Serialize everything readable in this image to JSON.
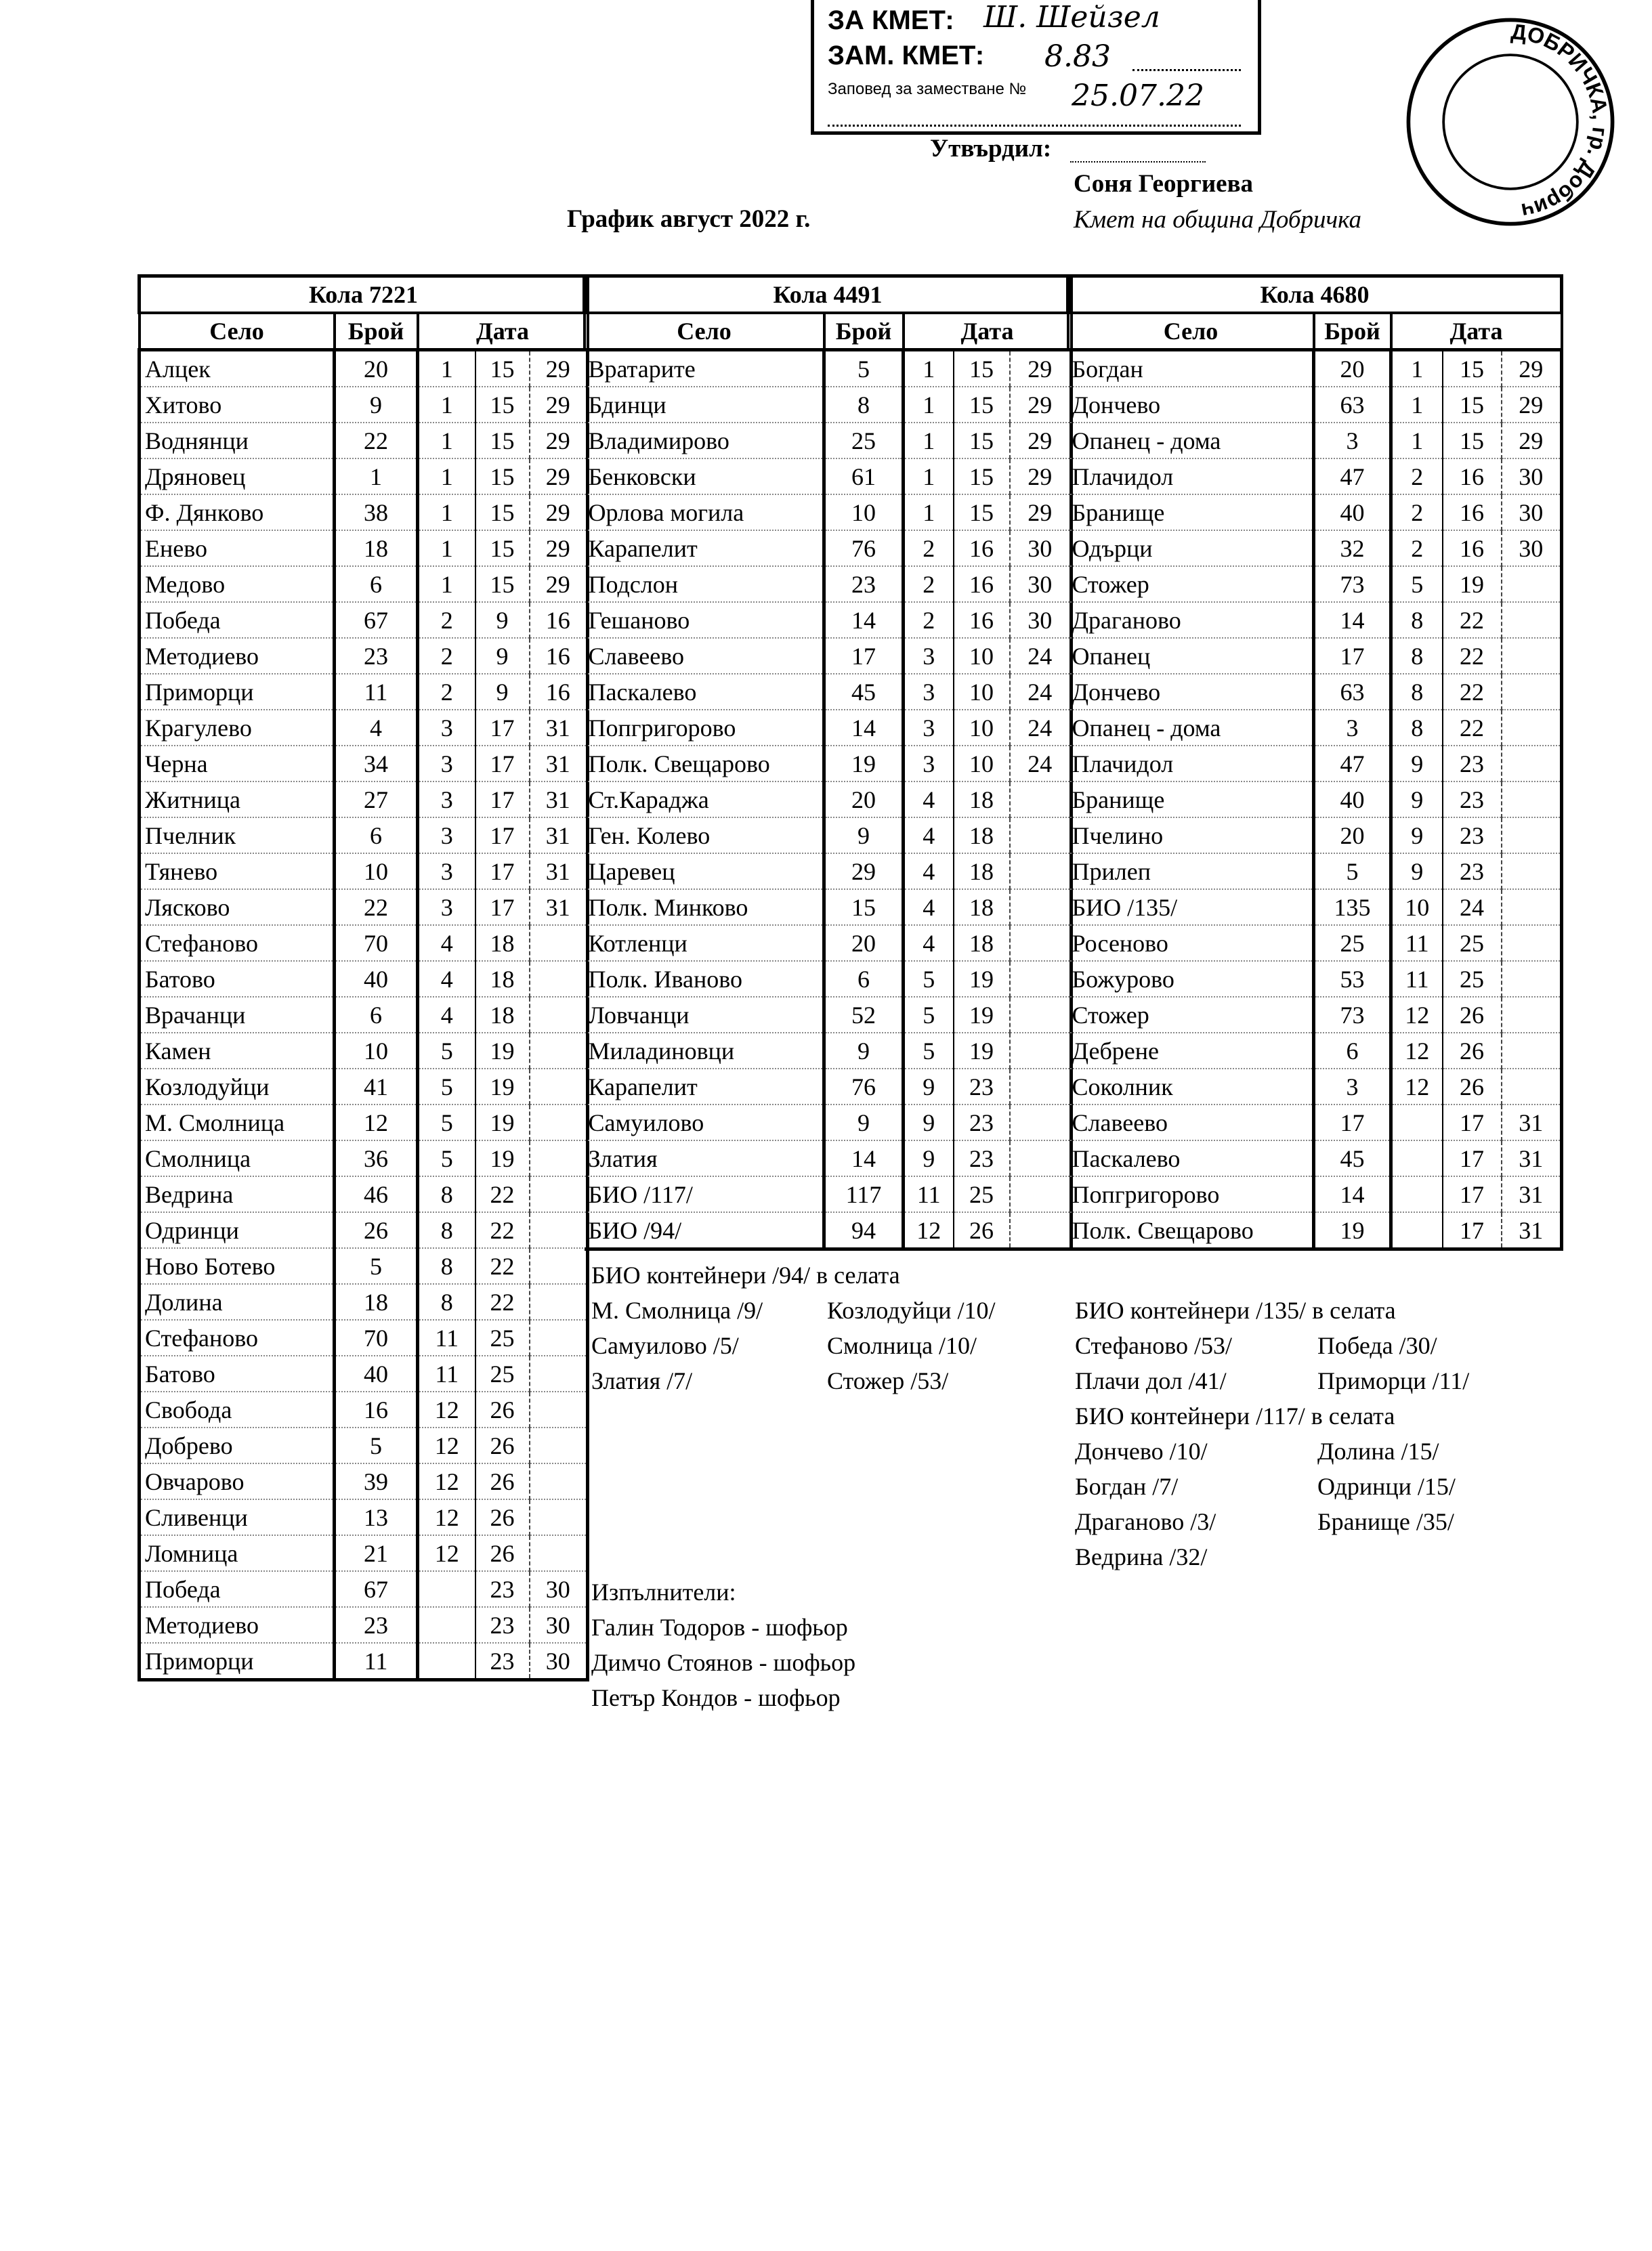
{
  "stamp": {
    "line1": "ЗА КМЕТ:",
    "line2": "ЗАМ. КМЕТ:",
    "line3": "Заповед за заместване №",
    "handwritten_number": "8.83",
    "handwritten_date": "25.07.22",
    "signature": "Ш. Шейзел"
  },
  "seal": {
    "text": "ДОБРИЧКА, гр. Добрич"
  },
  "header": {
    "title": "График август 2022 г.",
    "approved_label": "Утвърдил:",
    "approver_name": "Соня Георгиева",
    "approver_position": "Кмет на община Добричка"
  },
  "tables": [
    {
      "title": "Кола 7221",
      "columns": [
        "Село",
        "Брой",
        "Дата"
      ],
      "rows": [
        [
          "Алцек",
          "20",
          "1",
          "15",
          "29"
        ],
        [
          "Хитово",
          "9",
          "1",
          "15",
          "29"
        ],
        [
          "Воднянци",
          "22",
          "1",
          "15",
          "29"
        ],
        [
          "Дряновец",
          "1",
          "1",
          "15",
          "29"
        ],
        [
          "Ф. Дянково",
          "38",
          "1",
          "15",
          "29"
        ],
        [
          "Енево",
          "18",
          "1",
          "15",
          "29"
        ],
        [
          "Медово",
          "6",
          "1",
          "15",
          "29"
        ],
        [
          "Победа",
          "67",
          "2",
          "9",
          "16"
        ],
        [
          "Методиево",
          "23",
          "2",
          "9",
          "16"
        ],
        [
          "Приморци",
          "11",
          "2",
          "9",
          "16"
        ],
        [
          "Крагулево",
          "4",
          "3",
          "17",
          "31"
        ],
        [
          "Черна",
          "34",
          "3",
          "17",
          "31"
        ],
        [
          "Житница",
          "27",
          "3",
          "17",
          "31"
        ],
        [
          "Пчелник",
          "6",
          "3",
          "17",
          "31"
        ],
        [
          "Тянево",
          "10",
          "3",
          "17",
          "31"
        ],
        [
          "Лясково",
          "22",
          "3",
          "17",
          "31"
        ],
        [
          "Стефаново",
          "70",
          "4",
          "18",
          ""
        ],
        [
          "Батово",
          "40",
          "4",
          "18",
          ""
        ],
        [
          "Врачанци",
          "6",
          "4",
          "18",
          ""
        ],
        [
          "Камен",
          "10",
          "5",
          "19",
          ""
        ],
        [
          "Козлодуйци",
          "41",
          "5",
          "19",
          ""
        ],
        [
          "М. Смолница",
          "12",
          "5",
          "19",
          ""
        ],
        [
          "Смолница",
          "36",
          "5",
          "19",
          ""
        ],
        [
          "Ведрина",
          "46",
          "8",
          "22",
          ""
        ],
        [
          "Одринци",
          "26",
          "8",
          "22",
          ""
        ],
        [
          "Ново Ботево",
          "5",
          "8",
          "22",
          ""
        ],
        [
          "Долина",
          "18",
          "8",
          "22",
          ""
        ],
        [
          "Стефаново",
          "70",
          "11",
          "25",
          ""
        ],
        [
          "Батово",
          "40",
          "11",
          "25",
          ""
        ],
        [
          "Свобода",
          "16",
          "12",
          "26",
          ""
        ],
        [
          "Добрево",
          "5",
          "12",
          "26",
          ""
        ],
        [
          "Овчарово",
          "39",
          "12",
          "26",
          ""
        ],
        [
          "Сливенци",
          "13",
          "12",
          "26",
          ""
        ],
        [
          "Ломница",
          "21",
          "12",
          "26",
          ""
        ],
        [
          "Победа",
          "67",
          "",
          "23",
          "30"
        ],
        [
          "Методиево",
          "23",
          "",
          "23",
          "30"
        ],
        [
          "Приморци",
          "11",
          "",
          "23",
          "30"
        ]
      ]
    },
    {
      "title": "Кола 4491",
      "columns": [
        "Село",
        "Брой",
        "Дата"
      ],
      "rows": [
        [
          "Вратарите",
          "5",
          "1",
          "15",
          "29"
        ],
        [
          "Бдинци",
          "8",
          "1",
          "15",
          "29"
        ],
        [
          "Владимирово",
          "25",
          "1",
          "15",
          "29"
        ],
        [
          "Бенковски",
          "61",
          "1",
          "15",
          "29"
        ],
        [
          "Орлова могила",
          "10",
          "1",
          "15",
          "29"
        ],
        [
          "Карапелит",
          "76",
          "2",
          "16",
          "30"
        ],
        [
          "Подслон",
          "23",
          "2",
          "16",
          "30"
        ],
        [
          "Гешаново",
          "14",
          "2",
          "16",
          "30"
        ],
        [
          "Славеево",
          "17",
          "3",
          "10",
          "24"
        ],
        [
          "Паскалево",
          "45",
          "3",
          "10",
          "24"
        ],
        [
          "Попгригорово",
          "14",
          "3",
          "10",
          "24"
        ],
        [
          "Полк. Свещарово",
          "19",
          "3",
          "10",
          "24"
        ],
        [
          "Ст.Караджа",
          "20",
          "4",
          "18",
          ""
        ],
        [
          "Ген. Колево",
          "9",
          "4",
          "18",
          ""
        ],
        [
          "Царевец",
          "29",
          "4",
          "18",
          ""
        ],
        [
          "Полк. Минково",
          "15",
          "4",
          "18",
          ""
        ],
        [
          "Котленци",
          "20",
          "4",
          "18",
          ""
        ],
        [
          "Полк. Иваново",
          "6",
          "5",
          "19",
          ""
        ],
        [
          "Ловчанци",
          "52",
          "5",
          "19",
          ""
        ],
        [
          "Миладиновци",
          "9",
          "5",
          "19",
          ""
        ],
        [
          "Карапелит",
          "76",
          "9",
          "23",
          ""
        ],
        [
          "Самуилово",
          "9",
          "9",
          "23",
          ""
        ],
        [
          "Златия",
          "14",
          "9",
          "23",
          ""
        ],
        [
          "БИО /117/",
          "117",
          "11",
          "25",
          ""
        ],
        [
          "БИО /94/",
          "94",
          "12",
          "26",
          ""
        ]
      ]
    },
    {
      "title": "Кола 4680",
      "columns": [
        "Село",
        "Брой",
        "Дата"
      ],
      "rows": [
        [
          "Богдан",
          "20",
          "1",
          "15",
          "29"
        ],
        [
          "Дончево",
          "63",
          "1",
          "15",
          "29"
        ],
        [
          "Опанец - дома",
          "3",
          "1",
          "15",
          "29"
        ],
        [
          "Плачидол",
          "47",
          "2",
          "16",
          "30"
        ],
        [
          "Бранище",
          "40",
          "2",
          "16",
          "30"
        ],
        [
          "Одърци",
          "32",
          "2",
          "16",
          "30"
        ],
        [
          "Стожер",
          "73",
          "5",
          "19",
          ""
        ],
        [
          "Драганово",
          "14",
          "8",
          "22",
          ""
        ],
        [
          "Опанец",
          "17",
          "8",
          "22",
          ""
        ],
        [
          "Дончево",
          "63",
          "8",
          "22",
          ""
        ],
        [
          "Опанец - дома",
          "3",
          "8",
          "22",
          ""
        ],
        [
          "Плачидол",
          "47",
          "9",
          "23",
          ""
        ],
        [
          "Бранище",
          "40",
          "9",
          "23",
          ""
        ],
        [
          "Пчелино",
          "20",
          "9",
          "23",
          ""
        ],
        [
          "Прилеп",
          "5",
          "9",
          "23",
          ""
        ],
        [
          "БИО /135/",
          "135",
          "10",
          "24",
          ""
        ],
        [
          "Росеново",
          "25",
          "11",
          "25",
          ""
        ],
        [
          "Божурово",
          "53",
          "11",
          "25",
          ""
        ],
        [
          "Стожер",
          "73",
          "12",
          "26",
          ""
        ],
        [
          "Дебрене",
          "6",
          "12",
          "26",
          ""
        ],
        [
          "Соколник",
          "3",
          "12",
          "26",
          ""
        ],
        [
          "Славеево",
          "17",
          "",
          "17",
          "31"
        ],
        [
          "Паскалево",
          "45",
          "",
          "17",
          "31"
        ],
        [
          "Попгригорово",
          "14",
          "",
          "17",
          "31"
        ],
        [
          "Полк. Свещарово",
          "19",
          "",
          "17",
          "31"
        ]
      ]
    }
  ],
  "notes_94": {
    "title": "БИО контейнери /94/ в селата",
    "items": [
      "М. Смолница /9/",
      "Козлодуйци /10/",
      "Самуилово /5/",
      "Смолница /10/",
      "Златия /7/",
      "Стожер /53/"
    ]
  },
  "notes_135": {
    "title": "БИО контейнери /135/ в селата",
    "items": [
      "Стефаново /53/",
      "Победа /30/",
      "Плачи дол /41/",
      "Приморци /11/"
    ]
  },
  "notes_117": {
    "title": "БИО контейнери /117/ в селата",
    "items": [
      "Дончево /10/",
      "Долина /15/",
      "Богдан /7/",
      "Одринци /15/",
      "Драганово /3/",
      "Бранище /35/",
      "Ведрина /32/"
    ]
  },
  "executors": {
    "title": "Изпълнители:",
    "items": [
      "Галин Тодоров - шофьор",
      "Димчо Стоянов - шофьор",
      "Петър Кондов - шофьор"
    ]
  }
}
